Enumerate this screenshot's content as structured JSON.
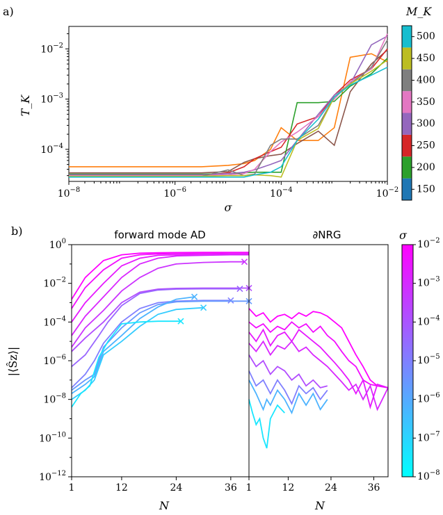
{
  "chart_data": [
    {
      "type": "line",
      "panel_label": "a)",
      "title": "",
      "xlabel": "σ",
      "ylabel": "T_K",
      "xscale": "log",
      "yscale": "log",
      "xlim": [
        1e-08,
        0.01
      ],
      "ylim": [
        2.3e-05,
        0.028
      ],
      "xtick_labels": [
        "10^-8",
        "10^-6",
        "10^-4",
        "10^-2"
      ],
      "ytick_labels": [
        "10^-4",
        "10^-3",
        "10^-2"
      ],
      "colorbar": {
        "label": "M_K",
        "ticks": [
          "150",
          "200",
          "250",
          "300",
          "350",
          "400",
          "450",
          "500"
        ],
        "colors": [
          "#1f77b4",
          "#2ca02c",
          "#d62728",
          "#9467bd",
          "#e377c2",
          "#7f7f7f",
          "#bcbd22",
          "#17becf"
        ]
      },
      "x": [
        1e-08,
        1.58e-06,
        3.16e-06,
        1e-05,
        2e-05,
        3.16e-05,
        6.3e-05,
        0.0001,
        0.0002,
        0.0005,
        0.001,
        0.002,
        0.005,
        0.01
      ],
      "series": [
        {
          "color": "#ff7f0e",
          "values": [
            4.5e-05,
            4.5e-05,
            4.5e-05,
            4.8e-05,
            5.2e-05,
            6e-05,
            0.0001,
            0.00027,
            0.00015,
            0.00015,
            0.00027,
            0.0068,
            0.008,
            0.0055
          ]
        },
        {
          "color": "#8c564b",
          "values": [
            3.4e-05,
            3.4e-05,
            3.4e-05,
            3.6e-05,
            5.5e-05,
            6.5e-05,
            7.5e-05,
            8e-05,
            0.00013,
            0.00023,
            0.00012,
            0.0014,
            0.005,
            0.0095
          ]
        },
        {
          "color": "#2ca02c",
          "values": [
            3.2e-05,
            3.2e-05,
            3.2e-05,
            3.3e-05,
            3.4e-05,
            3.5e-05,
            3.5e-05,
            3.5e-05,
            0.00085,
            0.00085,
            0.0009,
            0.0018,
            0.0032,
            0.0065
          ]
        },
        {
          "color": "#d62728",
          "values": [
            3e-05,
            3e-05,
            3e-05,
            3.4e-05,
            4.5e-05,
            6.5e-05,
            9e-05,
            0.00011,
            0.00032,
            0.00045,
            0.0012,
            0.0024,
            0.004,
            0.01
          ]
        },
        {
          "color": "#9467bd",
          "values": [
            3.1e-05,
            3.1e-05,
            3.1e-05,
            3.3e-05,
            3.5e-05,
            3.9e-05,
            5e-05,
            6e-05,
            0.00015,
            0.0005,
            0.0012,
            0.002,
            0.012,
            0.018
          ]
        },
        {
          "color": "#e377c2",
          "values": [
            3e-05,
            3e-05,
            3e-05,
            3.1e-05,
            3.3e-05,
            4e-05,
            9e-05,
            0.00014,
            0.00022,
            0.00045,
            0.001,
            0.0022,
            0.004,
            0.02
          ]
        },
        {
          "color": "#7f7f7f",
          "values": [
            2.9e-05,
            2.9e-05,
            2.9e-05,
            3.9e-05,
            3e-05,
            3.2e-05,
            0.00012,
            0.00016,
            0.00016,
            0.0003,
            0.0011,
            0.002,
            0.0043,
            0.015
          ]
        },
        {
          "color": "#bcbd22",
          "values": [
            2.9e-05,
            2.9e-05,
            2.9e-05,
            3e-05,
            3e-05,
            3.1e-05,
            3e-05,
            2.8e-05,
            0.00015,
            0.00026,
            0.0011,
            0.002,
            0.0036,
            0.006
          ]
        },
        {
          "color": "#17becf",
          "values": [
            2.8e-05,
            2.8e-05,
            2.8e-05,
            2.8e-05,
            2.8e-05,
            3.1e-05,
            3.5e-05,
            4.5e-05,
            0.00015,
            0.0004,
            0.0011,
            0.0019,
            0.003,
            0.0043
          ]
        }
      ]
    },
    {
      "type": "line",
      "panel_label": "b)",
      "ylabel": "|⟨Ŝz⟩|",
      "xlabel": "N",
      "yscale": "log",
      "ylim": [
        1e-12,
        1
      ],
      "ytick_labels": [
        "10^0",
        "10^-2",
        "10^-4",
        "10^-6",
        "10^-8",
        "10^-10",
        "10^-12"
      ],
      "colorbar": {
        "label": "σ",
        "ticks": [
          "10^-2",
          "10^-3",
          "10^-4",
          "10^-5",
          "10^-6",
          "10^-7",
          "10^-8"
        ],
        "gradient": [
          "#ff00ff",
          "#00ffff"
        ]
      },
      "subpanels": [
        {
          "title": "forward mode AD",
          "xlim": [
            1,
            40
          ],
          "xtick_labels": [
            "1",
            "12",
            "24",
            "36"
          ],
          "x_ticks": [
            1,
            12,
            24,
            36
          ],
          "series": [
            {
              "color": "#ff00ff",
              "x": [
                1,
                4,
                8,
                12,
                16,
                20,
                24,
                30,
                36,
                40
              ],
              "values": [
                0.0015,
                0.02,
                0.15,
                0.3,
                0.36,
                0.38,
                0.39,
                0.4,
                0.4,
                0.4
              ],
              "end_marker": "none"
            },
            {
              "color": "#f20cff",
              "x": [
                1,
                4,
                8,
                12,
                16,
                20,
                24,
                30,
                36,
                40
              ],
              "values": [
                0.0005,
                0.006,
                0.05,
                0.2,
                0.3,
                0.33,
                0.35,
                0.36,
                0.37,
                0.37
              ],
              "end_marker": "none"
            },
            {
              "color": "#e619ff",
              "x": [
                1,
                4,
                8,
                12,
                16,
                20,
                24,
                30,
                36,
                40
              ],
              "values": [
                0.0001,
                0.001,
                0.01,
                0.08,
                0.2,
                0.28,
                0.3,
                0.31,
                0.32,
                0.32
              ],
              "end_marker": "none"
            },
            {
              "color": "#d926ff",
              "x": [
                1,
                4,
                8,
                12,
                16,
                20,
                24,
                30,
                36,
                40
              ],
              "values": [
                2e-05,
                0.0002,
                0.002,
                0.02,
                0.1,
                0.2,
                0.26,
                0.28,
                0.3,
                0.3
              ],
              "end_marker": "none"
            },
            {
              "color": "#cc33ff",
              "x": [
                1,
                4,
                8,
                12,
                16,
                20,
                24,
                30,
                36,
                39
              ],
              "values": [
                5e-06,
                5e-05,
                0.0004,
                0.004,
                0.02,
                0.06,
                0.1,
                0.12,
                0.13,
                0.13
              ],
              "end_marker": "x"
            },
            {
              "color": "#b24dff",
              "x": [
                1,
                4,
                8,
                12,
                16,
                20,
                24,
                30,
                36,
                40
              ],
              "values": [
                3e-06,
                1.5e-05,
                0.0001,
                0.001,
                0.0035,
                0.005,
                0.0055,
                0.0057,
                0.0057,
                0.0057
              ],
              "end_marker": "x"
            },
            {
              "color": "#9966ff",
              "x": [
                1,
                4,
                7,
                9,
                12,
                16,
                20,
                24,
                30,
                38
              ],
              "values": [
                5e-07,
                2e-06,
                2e-05,
                0.0001,
                0.0007,
                0.003,
                0.0045,
                0.005,
                0.0052,
                0.0052
              ],
              "end_marker": "x"
            },
            {
              "color": "#8080ff",
              "x": [
                1,
                4,
                6,
                8,
                12,
                16,
                20,
                24,
                30,
                36
              ],
              "values": [
                4e-08,
                2e-07,
                1e-06,
                8e-06,
                0.0001,
                0.0005,
                0.001,
                0.0012,
                0.0013,
                0.0013
              ],
              "end_marker": "x"
            },
            {
              "color": "#6699ff",
              "x": [
                1,
                4,
                6,
                8,
                12,
                16,
                20,
                24,
                30,
                40
              ],
              "values": [
                3e-08,
                1e-07,
                2e-07,
                5e-06,
                5e-05,
                0.0003,
                0.0008,
                0.0011,
                0.0012,
                0.0012
              ],
              "end_marker": "x"
            },
            {
              "color": "#4db3ff",
              "x": [
                1,
                4,
                6,
                8,
                12,
                16,
                20,
                24,
                28
              ],
              "values": [
                2e-08,
                6e-08,
                1.5e-07,
                3e-06,
                2e-05,
                0.00015,
                0.0006,
                0.0015,
                0.002
              ],
              "end_marker": "x"
            },
            {
              "color": "#33ccff",
              "x": [
                1,
                4,
                6,
                8,
                12,
                16,
                20,
                24,
                30
              ],
              "values": [
                1e-08,
                3e-08,
                1e-07,
                2e-06,
                1e-05,
                6e-05,
                0.00025,
                0.00045,
                0.00055
              ],
              "end_marker": "x"
            },
            {
              "color": "#19e6ff",
              "x": [
                1,
                3,
                5,
                7,
                9,
                12,
                16,
                20,
                25
              ],
              "values": [
                4e-09,
                2e-08,
                5e-08,
                1.5e-06,
                1e-05,
                8e-05,
                0.0001,
                0.00011,
                0.00011
              ],
              "end_marker": "x"
            }
          ]
        },
        {
          "title": "∂NRG",
          "xlim": [
            1,
            40
          ],
          "xtick_labels": [
            "1",
            "12",
            "24",
            "36"
          ],
          "x_ticks": [
            1,
            12,
            24,
            36
          ],
          "series": [
            {
              "color": "#ff00ff",
              "x": [
                1,
                3,
                5,
                7,
                9,
                11,
                13,
                15,
                17,
                19,
                21,
                23,
                25,
                27,
                29,
                31,
                33,
                35,
                37,
                40
              ],
              "values": [
                0.0005,
                0.0002,
                0.0003,
                0.0001,
                0.0002,
                0.00025,
                0.00015,
                0.0003,
                0.0002,
                0.00035,
                0.0003,
                0.0002,
                0.0001,
                5e-05,
                1e-05,
                2e-06,
                5e-07,
                1e-07,
                5e-08,
                4e-08
              ]
            },
            {
              "color": "#f20cff",
              "x": [
                1,
                3,
                5,
                7,
                9,
                11,
                13,
                15,
                17,
                19,
                21,
                23,
                25,
                27,
                29,
                31,
                33,
                35,
                37,
                40
              ],
              "values": [
                0.0001,
                5e-05,
                8e-05,
                3e-05,
                6e-05,
                4e-05,
                0.0001,
                5e-05,
                8e-05,
                3e-05,
                6e-05,
                2e-05,
                1e-05,
                3e-06,
                1e-06,
                5e-07,
                1e-07,
                6e-08,
                5e-08,
                4e-08
              ]
            },
            {
              "color": "#e619ff",
              "x": [
                1,
                3,
                5,
                7,
                9,
                11,
                13,
                15,
                17,
                19,
                21,
                23,
                25,
                27,
                29,
                31,
                33,
                35,
                37,
                40
              ],
              "values": [
                3e-05,
                1e-05,
                4e-05,
                6e-06,
                2e-05,
                3e-05,
                1e-05,
                4e-05,
                2e-05,
                1e-05,
                5e-06,
                2e-06,
                8e-07,
                3e-07,
                1e-07,
                2e-08,
                1e-07,
                4e-09,
                6e-08,
                4e-08
              ]
            },
            {
              "color": "#d926ff",
              "x": [
                1,
                3,
                5,
                7,
                9,
                11,
                13,
                15,
                17,
                19,
                21,
                23,
                25,
                27,
                29,
                31,
                33,
                35,
                37,
                40
              ],
              "values": [
                8e-06,
                3e-06,
                1e-05,
                2e-06,
                6e-06,
                4e-06,
                1e-05,
                3e-06,
                5e-06,
                2e-06,
                1e-06,
                5e-07,
                2e-07,
                8e-08,
                3e-08,
                6e-08,
                1e-08,
                5e-08,
                3e-09,
                4e-08
              ]
            },
            {
              "color": "#b24dff",
              "x": [
                1,
                3,
                5,
                7,
                9,
                11,
                13,
                15,
                17,
                19,
                21,
                23
              ],
              "values": [
                2e-06,
                5e-07,
                1e-06,
                2e-07,
                5e-07,
                3e-07,
                1e-07,
                2e-07,
                5e-08,
                1e-07,
                4e-08,
                5e-08
              ]
            },
            {
              "color": "#8080ff",
              "x": [
                1,
                3,
                5,
                7,
                9,
                11,
                13,
                15,
                17,
                19,
                21,
                23
              ],
              "values": [
                3e-07,
                5e-08,
                1e-07,
                2e-08,
                1e-07,
                3e-08,
                6e-09,
                5e-08,
                2e-08,
                4e-08,
                1e-08,
                3e-08
              ]
            },
            {
              "color": "#4db3ff",
              "x": [
                1,
                3,
                5,
                6,
                7,
                9,
                11,
                13,
                15,
                17,
                19,
                21,
                23
              ],
              "values": [
                1e-07,
                2e-08,
                3e-09,
                1e-08,
                5e-09,
                3e-08,
                1e-08,
                2e-09,
                2e-08,
                5e-09,
                2e-08,
                3e-09,
                1e-08
              ]
            },
            {
              "color": "#19e6ff",
              "x": [
                1,
                2,
                3,
                4,
                5,
                6,
                7,
                9,
                11
              ],
              "values": [
                1e-08,
                2e-09,
                5e-10,
                1e-09,
                1e-10,
                3e-11,
                1e-09,
                5e-09,
                2e-09
              ]
            }
          ]
        }
      ]
    }
  ]
}
